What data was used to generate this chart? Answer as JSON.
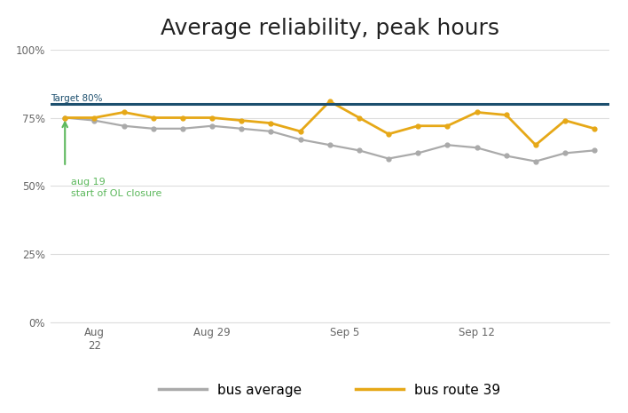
{
  "title": "Average reliability, peak hours",
  "target_line": 80,
  "target_label": "Target 80%",
  "ylim": [
    0,
    100
  ],
  "yticks": [
    0,
    25,
    50,
    75,
    100
  ],
  "ytick_labels": [
    "0%",
    "25%",
    "50%",
    "75%",
    "100%"
  ],
  "annotation_color": "#5cb85c",
  "bus_avg_x": [
    0,
    1,
    2,
    3,
    4,
    5,
    6,
    7,
    8,
    9,
    10,
    11,
    12,
    13,
    14,
    15,
    16,
    17,
    18
  ],
  "bus_avg_y": [
    75,
    74,
    72,
    71,
    71,
    72,
    71,
    70,
    67,
    65,
    63,
    60,
    62,
    65,
    64,
    61,
    59,
    62,
    63
  ],
  "route39_x": [
    0,
    1,
    2,
    3,
    4,
    5,
    6,
    7,
    8,
    9,
    10,
    11,
    12,
    13,
    14,
    15,
    16,
    17,
    18
  ],
  "route39_y": [
    75,
    75,
    77,
    75,
    75,
    75,
    74,
    73,
    70,
    81,
    75,
    69,
    72,
    72,
    77,
    76,
    65,
    74,
    71
  ],
  "bus_avg_color": "#aaaaaa",
  "route39_color": "#e6a817",
  "target_line_color": "#1c4f6e",
  "grid_color": "#dddddd",
  "background_color": "#ffffff",
  "legend_bus_avg": "bus average",
  "legend_route39": "bus route 39",
  "xtick_positions": [
    1,
    5,
    9.5,
    14
  ],
  "xtick_labels": [
    "Aug\n22",
    "Aug 29",
    "Sep 5",
    "Sep 12"
  ]
}
